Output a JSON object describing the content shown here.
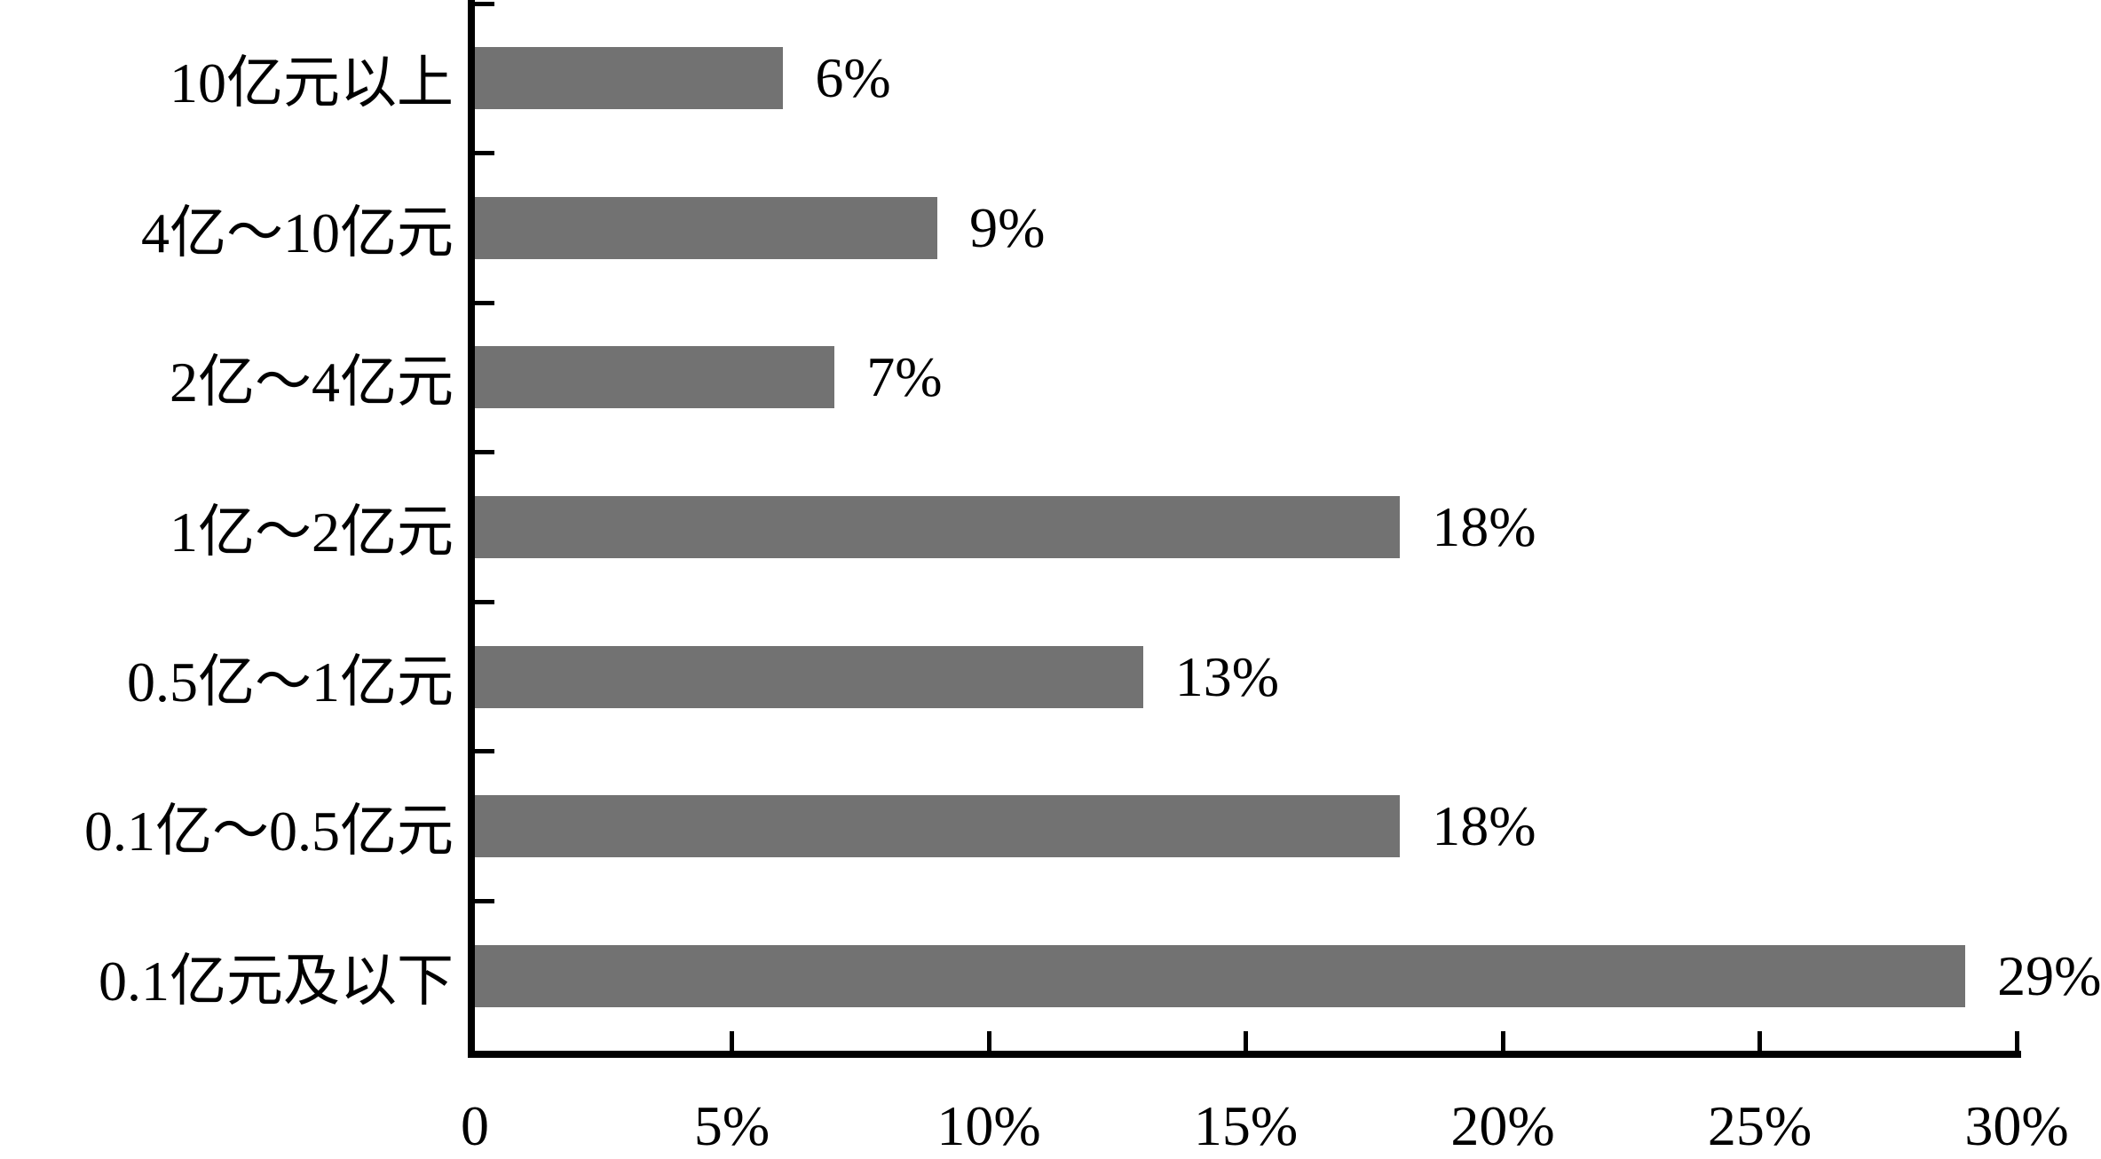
{
  "chart_data": {
    "type": "bar",
    "orientation": "horizontal",
    "title": "",
    "categories": [
      "10亿元以上",
      "4亿～10亿元",
      "2亿～4亿元",
      "1亿～2亿元",
      "0.5亿～1亿元",
      "0.1亿～0.5亿元",
      "0.1亿元及以下"
    ],
    "values": [
      6,
      9,
      7,
      18,
      13,
      18,
      29
    ],
    "value_labels": [
      "6%",
      "9%",
      "7%",
      "18%",
      "13%",
      "18%",
      "29%"
    ],
    "xlabel": "",
    "ylabel": "",
    "xlim": [
      0,
      30
    ],
    "x_ticks": [
      0,
      5,
      10,
      15,
      20,
      25,
      30
    ],
    "x_tick_labels": [
      "0",
      "5%",
      "10%",
      "15%",
      "20%",
      "25%",
      "30%"
    ],
    "grid": false,
    "legend_position": "none",
    "bar_color": "#727272",
    "axis_color": "#000000",
    "text_color": "#000000",
    "background_color": "#ffffff"
  }
}
